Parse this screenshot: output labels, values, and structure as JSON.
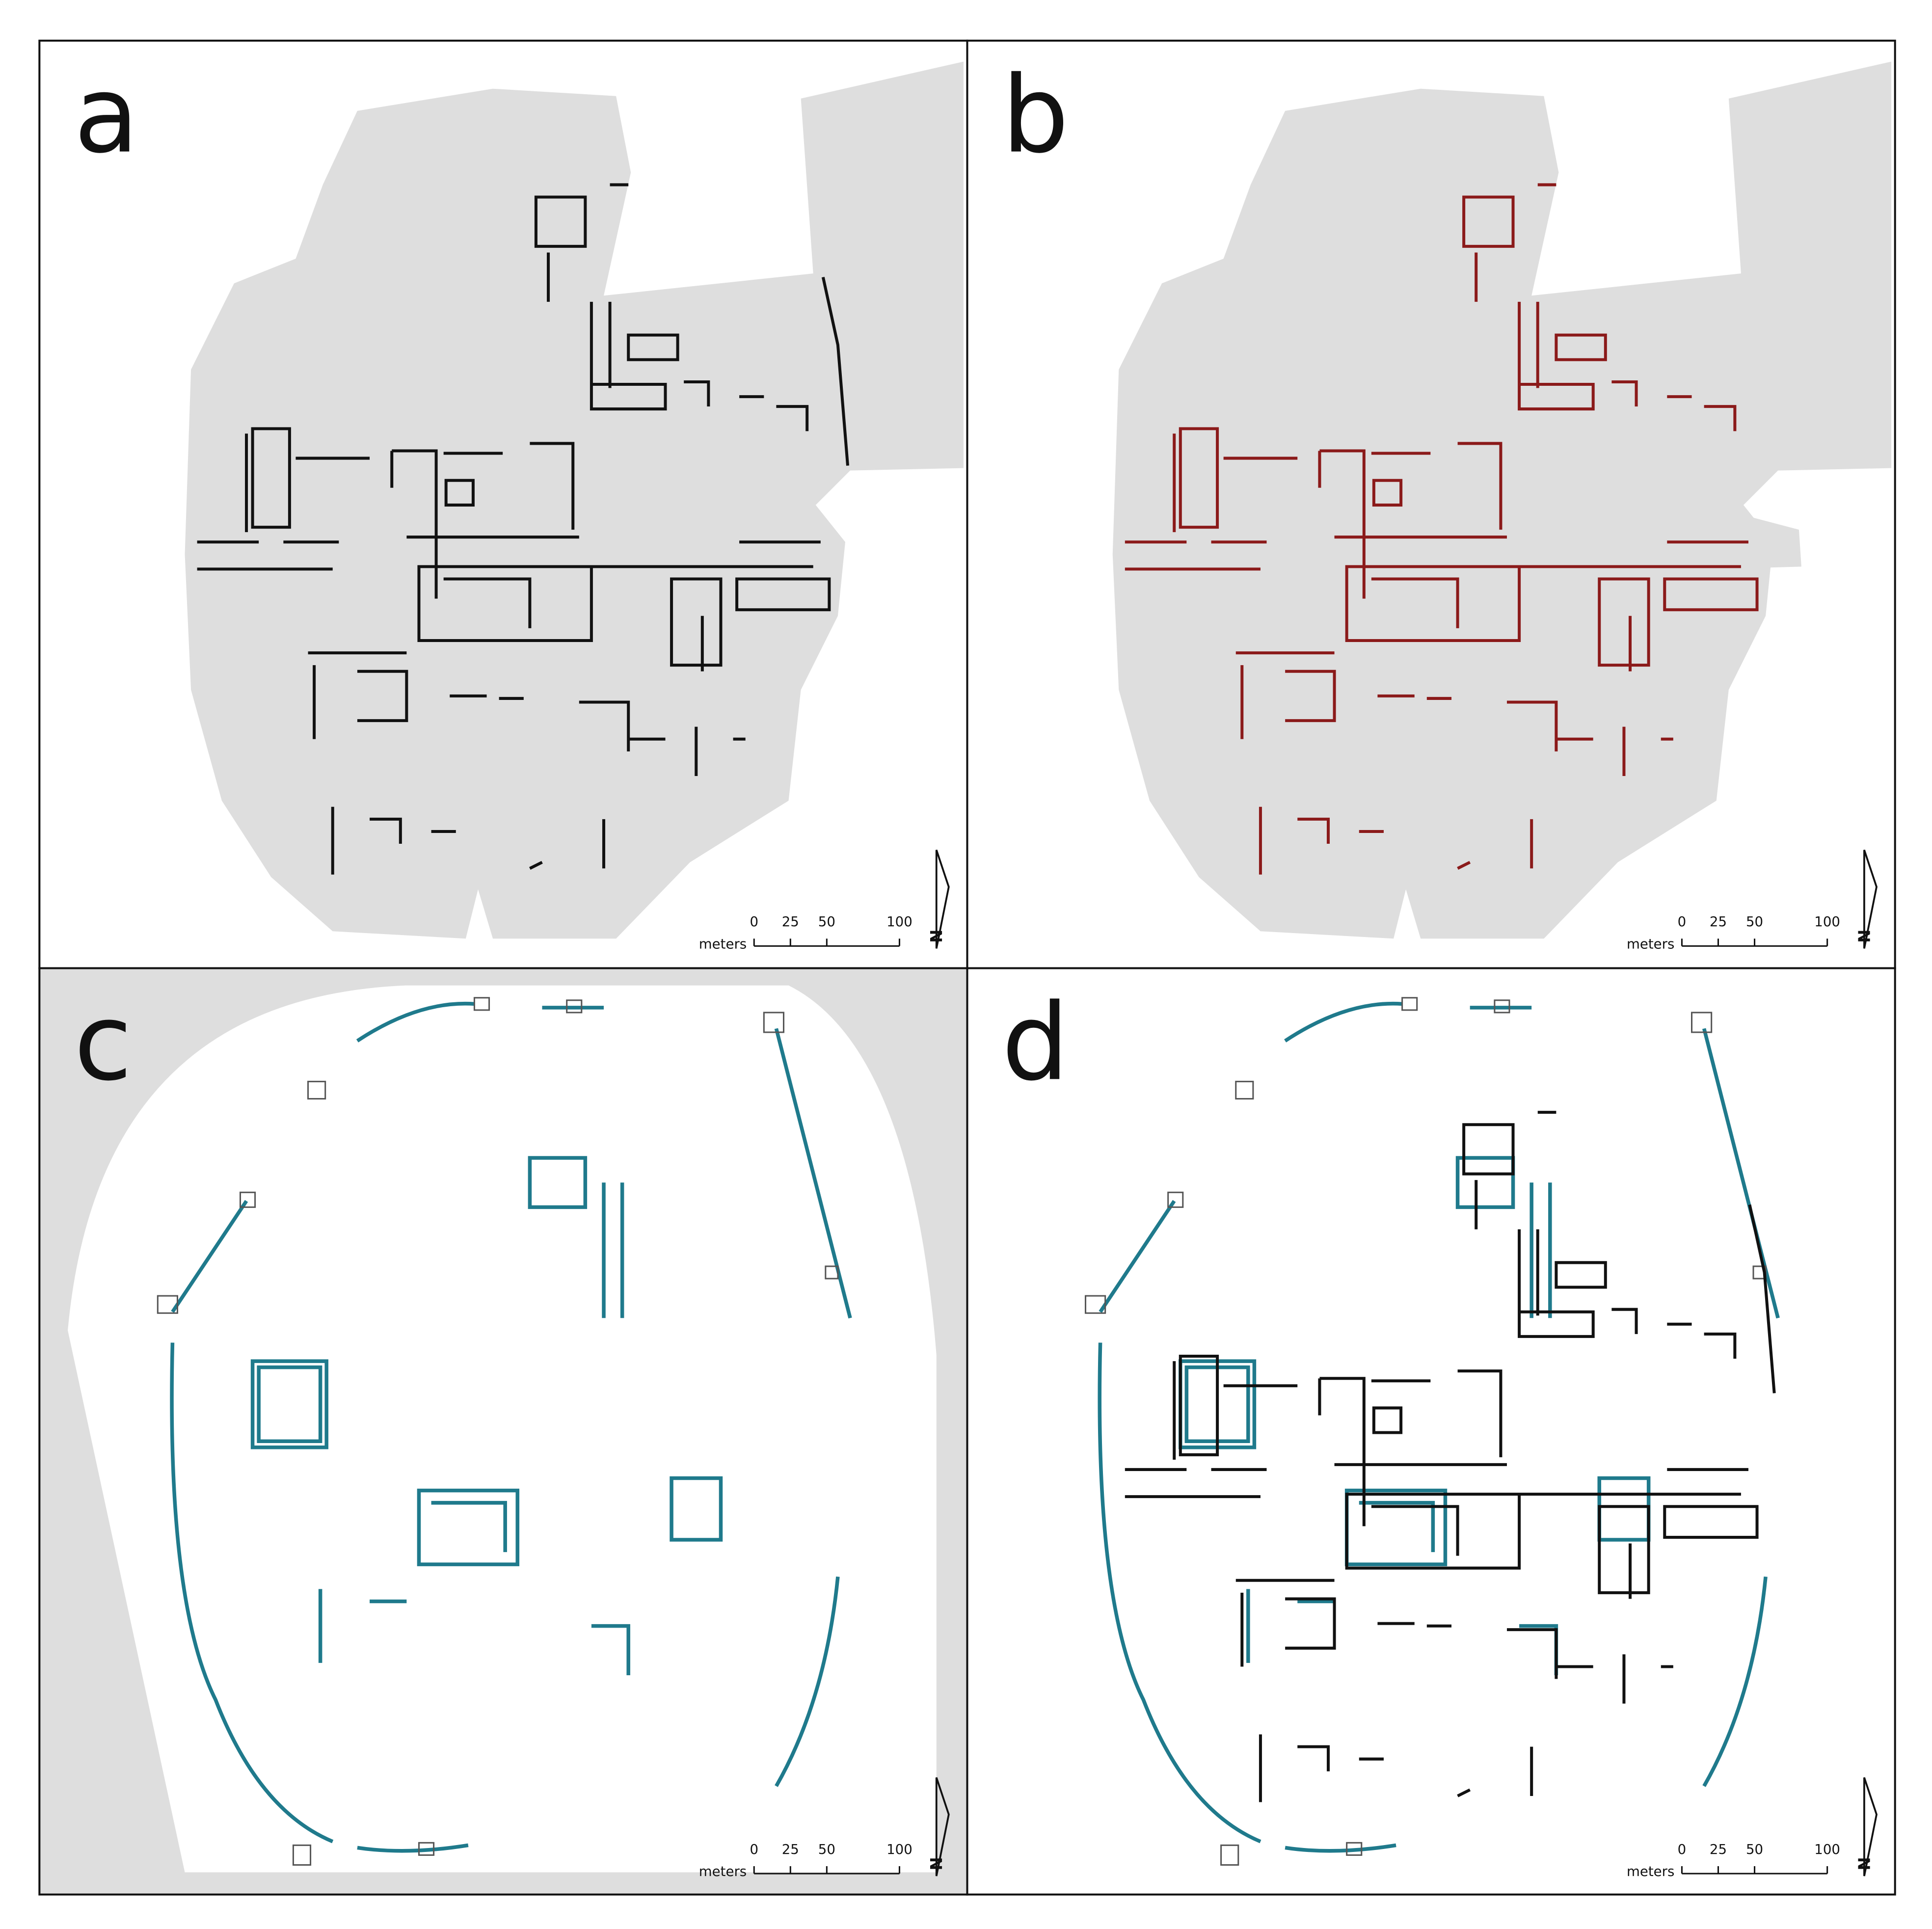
{
  "panels": [
    {
      "label": "a",
      "scale_bar": {
        "ticks": [
          0,
          25,
          50,
          100
        ],
        "unit": "meters"
      },
      "north": "N"
    },
    {
      "label": "b",
      "scale_bar": {
        "ticks": [
          0,
          25,
          50,
          100
        ],
        "unit": "meters"
      },
      "north": "N"
    },
    {
      "label": "c",
      "scale_bar": {
        "ticks": [
          0,
          25,
          50,
          100
        ],
        "unit": "meters"
      },
      "north": "N"
    },
    {
      "label": "d",
      "scale_bar": {
        "ticks": [
          0,
          25,
          50,
          100
        ],
        "unit": "meters"
      },
      "north": "N"
    }
  ]
}
